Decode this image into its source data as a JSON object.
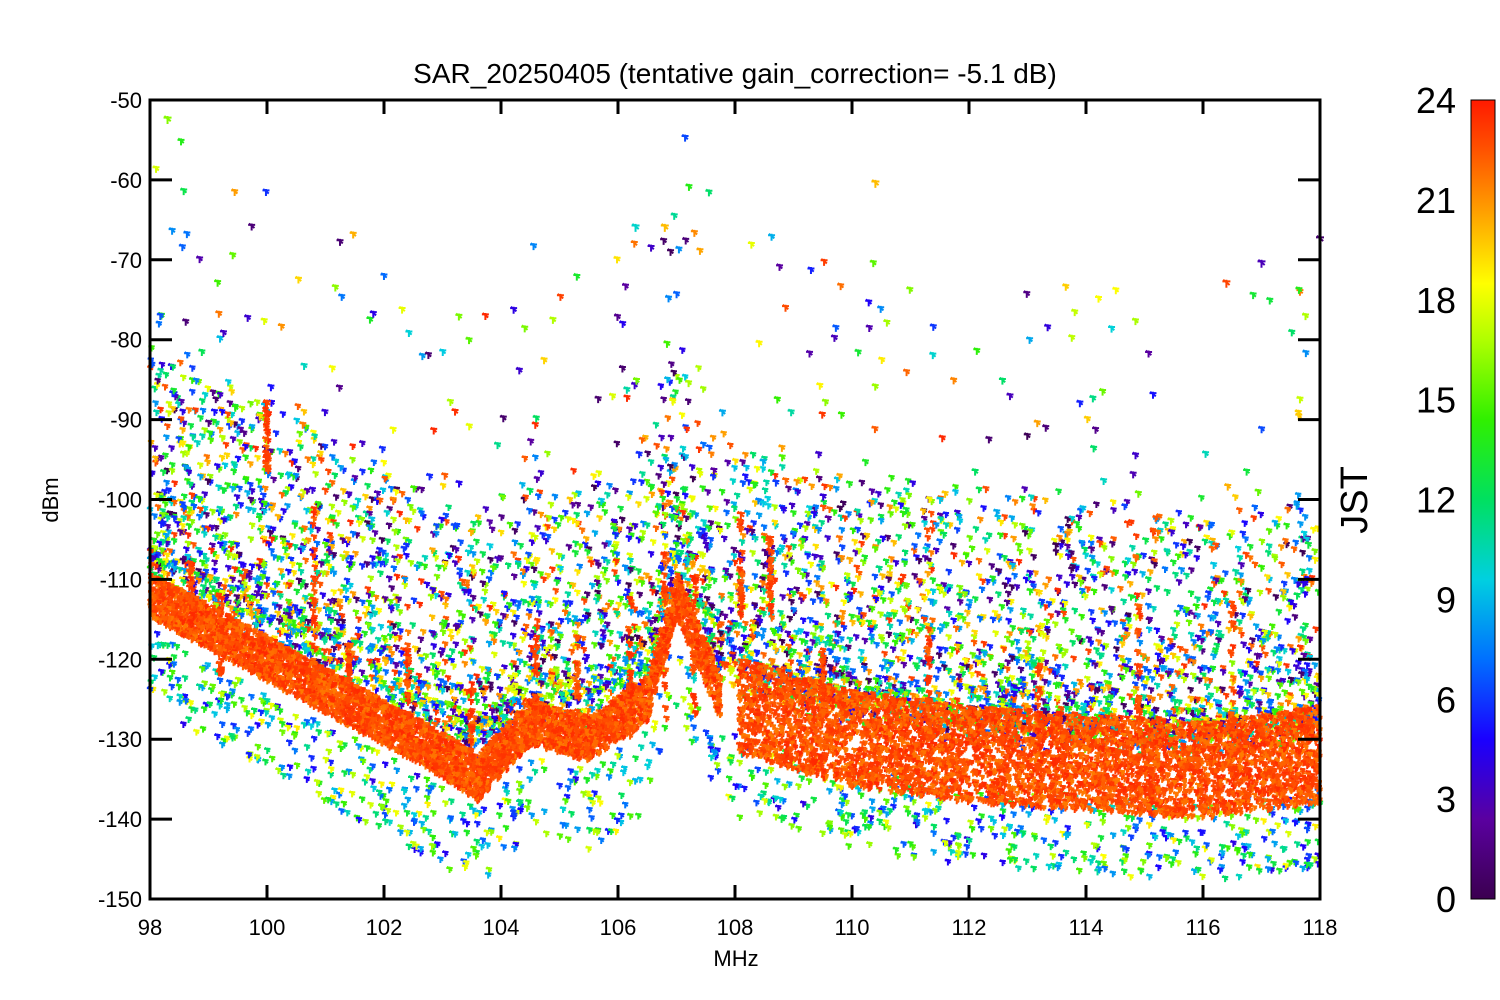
{
  "chart_data": {
    "type": "scatter",
    "title": "SAR_20250405 (tentative gain_correction= -5.1 dB)",
    "xlabel": "MHz",
    "ylabel": "dBm",
    "xlim": [
      98,
      118
    ],
    "ylim": [
      -150,
      -50
    ],
    "x_ticks": [
      "98",
      "100",
      "102",
      "104",
      "106",
      "108",
      "110",
      "112",
      "114",
      "116",
      "118"
    ],
    "y_ticks": [
      "-50",
      "-60",
      "-70",
      "-80",
      "-90",
      "-100",
      "-110",
      "-120",
      "-130",
      "-140",
      "-150"
    ],
    "colorbar": {
      "label": "JST",
      "range": [
        0,
        24
      ],
      "ticks": [
        "24",
        "21",
        "18",
        "15",
        "12",
        "9",
        "6",
        "3",
        "0"
      ],
      "colormap": "rainbow (purple-blue-cyan-green-yellow-orange-red)"
    },
    "series": [
      {
        "color_value": 23,
        "description_points": [
          [
            98,
            -112
          ],
          [
            99,
            -116
          ],
          [
            100,
            -120
          ],
          [
            101,
            -124
          ],
          [
            102,
            -128
          ],
          [
            103,
            -132
          ],
          [
            103.6,
            -135
          ],
          [
            104.5,
            -128
          ],
          [
            105.5,
            -130
          ],
          [
            106.5,
            -125
          ],
          [
            107,
            -112
          ],
          [
            107.7,
            -124
          ],
          [
            108.1,
            -126
          ],
          [
            110,
            -130
          ],
          [
            112,
            -132
          ],
          [
            114,
            -133
          ],
          [
            116,
            -134
          ],
          [
            118,
            -132
          ]
        ]
      }
    ],
    "notable_points": [
      {
        "x": 98.3,
        "y": -52.5,
        "jst": 16
      },
      {
        "x": 110.4,
        "y": -60.5,
        "jst": 20
      },
      {
        "x": 106.3,
        "y": -66,
        "jst": 10
      },
      {
        "x": 106.8,
        "y": -66,
        "jst": 20
      },
      {
        "x": 116.4,
        "y": -73,
        "jst": 23
      },
      {
        "x": 117,
        "y": -70.5,
        "jst": 3
      },
      {
        "x": 118,
        "y": -67.5,
        "jst": 1
      },
      {
        "x": 100,
        "y": -88,
        "jst": 23
      },
      {
        "x": 108.1,
        "y": -102,
        "jst": 23
      },
      {
        "x": 108.6,
        "y": -105,
        "jst": 23
      }
    ]
  }
}
